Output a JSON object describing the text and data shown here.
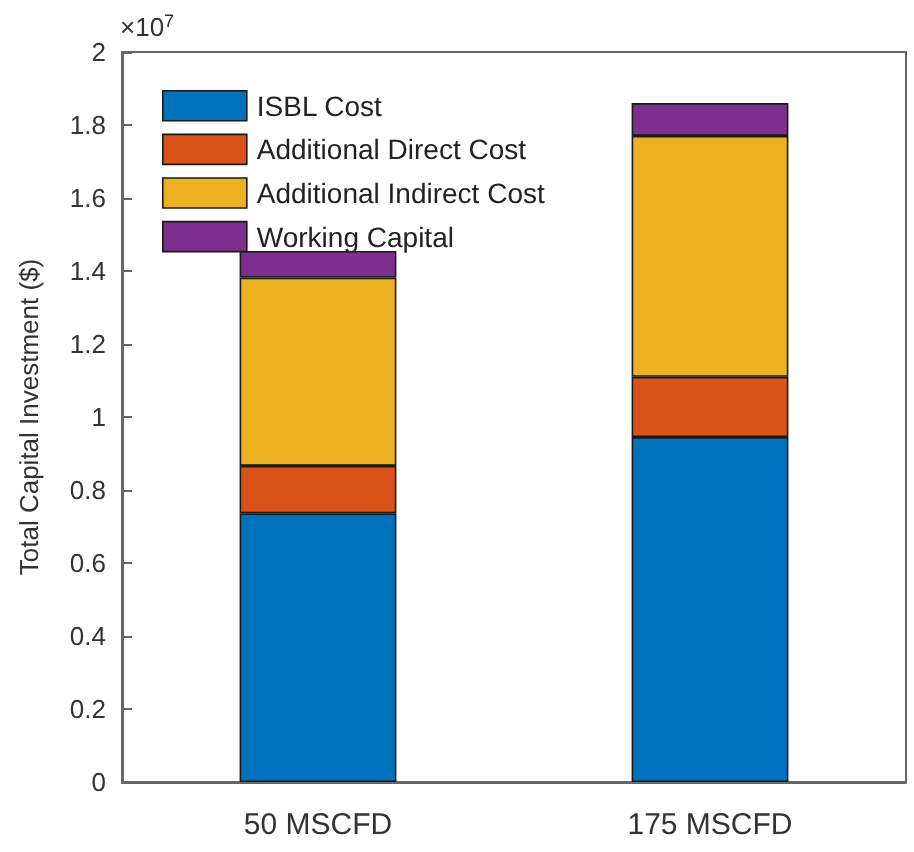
{
  "chart_data": {
    "type": "bar",
    "stacked": true,
    "ylabel": "Total Capital Investment ($)",
    "categories": [
      "50 MSCFD",
      "175 MSCFD"
    ],
    "series": [
      {
        "name": "ISBL Cost",
        "color": "#0072bd",
        "values": [
          0.736,
          0.945
        ]
      },
      {
        "name": "Additional Direct Cost",
        "color": "#d95319",
        "values": [
          0.13,
          0.165
        ]
      },
      {
        "name": "Additional Indirect Cost",
        "color": "#edb120",
        "values": [
          0.516,
          0.66
        ]
      },
      {
        "name": "Working Capital",
        "color": "#7e2f8e",
        "values": [
          0.073,
          0.09
        ]
      }
    ],
    "ylim": [
      0,
      2
    ],
    "yticks": [
      0,
      0.2,
      0.4,
      0.6,
      0.8,
      1,
      1.2,
      1.4,
      1.6,
      1.8,
      2
    ],
    "annotations": [
      "×10$^{7}$"
    ],
    "legend": "top left",
    "grid": false
  }
}
